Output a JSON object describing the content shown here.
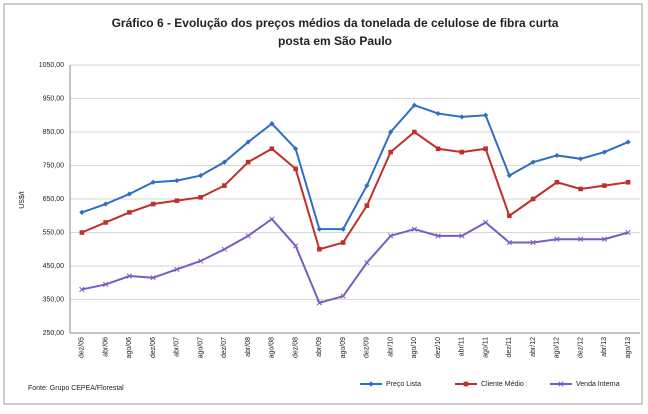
{
  "chart_data": {
    "type": "line",
    "title": [
      "Gráfico 6 - Evolução dos preços médios da tonelada de celulose de fibra curta",
      "posta em São Paulo"
    ],
    "y_label": "US$/t",
    "source": "Fonte: Grupo CEPEA/Florestal",
    "categories": [
      "dez/05",
      "abr/06",
      "ago/06",
      "dez/06",
      "abr/07",
      "ago/07",
      "dez/07",
      "abr/08",
      "ago/08",
      "dez/08",
      "abr/09",
      "ago/09",
      "dez/09",
      "abr/10",
      "ago/10",
      "dez/10",
      "abr/11",
      "ago/11",
      "dez/11",
      "abr/12",
      "ago/12",
      "dez/12",
      "abr/13",
      "ago/13"
    ],
    "series": [
      {
        "name": "Preço Lista",
        "color": "#2e6fc4",
        "marker": "diamond",
        "values": [
          610,
          635,
          665,
          700,
          705,
          720,
          760,
          820,
          875,
          800,
          560,
          560,
          690,
          850,
          930,
          905,
          895,
          900,
          720,
          760,
          780,
          770,
          790,
          820
        ]
      },
      {
        "name": "Cliente Médio",
        "color": "#c0302a",
        "marker": "square",
        "values": [
          550,
          580,
          610,
          635,
          645,
          655,
          690,
          760,
          800,
          740,
          500,
          520,
          630,
          790,
          850,
          800,
          790,
          800,
          600,
          650,
          700,
          680,
          690,
          700
        ]
      },
      {
        "name": "Venda Interna",
        "color": "#7a5cc0",
        "marker": "x",
        "values": [
          380,
          395,
          420,
          415,
          440,
          465,
          500,
          540,
          590,
          510,
          340,
          360,
          460,
          540,
          560,
          540,
          540,
          580,
          520,
          520,
          530,
          530,
          530,
          550
        ]
      }
    ],
    "ylim": [
      250,
      1050
    ],
    "yticks": [
      {
        "value": 250,
        "label": "250,00"
      },
      {
        "value": 350,
        "label": "350,00"
      },
      {
        "value": 450,
        "label": "450,00"
      },
      {
        "value": 550,
        "label": "550,00"
      },
      {
        "value": 650,
        "label": "650,00"
      },
      {
        "value": 750,
        "label": "750,00"
      },
      {
        "value": 850,
        "label": "850,00"
      },
      {
        "value": 950,
        "label": "950,00"
      },
      {
        "value": 1050,
        "label": "1050,00"
      }
    ],
    "grid": true,
    "legend": "bottom"
  }
}
